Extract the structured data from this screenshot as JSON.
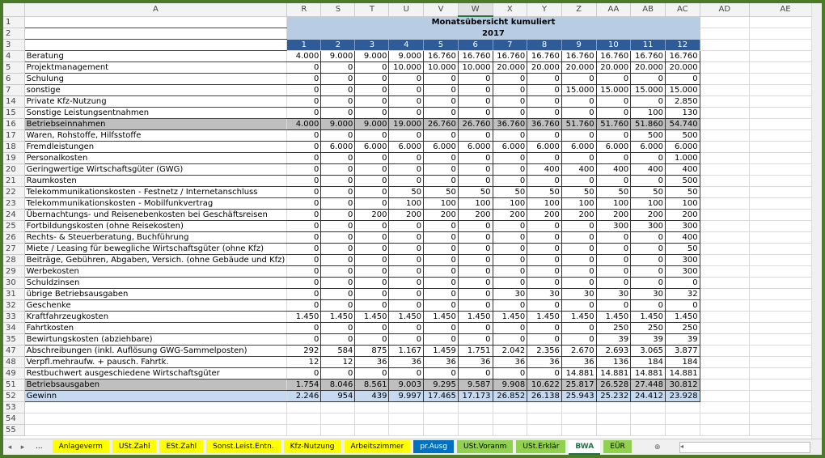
{
  "columns": [
    "A",
    "R",
    "S",
    "T",
    "U",
    "V",
    "W",
    "X",
    "Y",
    "Z",
    "AA",
    "AB",
    "AC",
    "AD",
    "AE"
  ],
  "selected_column": "W",
  "title": "Monatsübersicht kumuliert",
  "year": "2017",
  "months": [
    "1",
    "2",
    "3",
    "4",
    "5",
    "6",
    "7",
    "8",
    "9",
    "10",
    "11",
    "12"
  ],
  "rows": [
    {
      "n": "4",
      "label": "Beratung",
      "v": [
        "4.000",
        "9.000",
        "9.000",
        "9.000",
        "16.760",
        "16.760",
        "16.760",
        "16.760",
        "16.760",
        "16.760",
        "16.760",
        "16.760"
      ]
    },
    {
      "n": "5",
      "label": "Projektmanagement",
      "v": [
        "0",
        "0",
        "0",
        "10.000",
        "10.000",
        "10.000",
        "20.000",
        "20.000",
        "20.000",
        "20.000",
        "20.000",
        "20.000"
      ]
    },
    {
      "n": "6",
      "label": "Schulung",
      "v": [
        "0",
        "0",
        "0",
        "0",
        "0",
        "0",
        "0",
        "0",
        "0",
        "0",
        "0",
        "0"
      ]
    },
    {
      "n": "7",
      "label": "sonstige",
      "v": [
        "0",
        "0",
        "0",
        "0",
        "0",
        "0",
        "0",
        "0",
        "15.000",
        "15.000",
        "15.000",
        "15.000"
      ]
    },
    {
      "n": "14",
      "label": "Private Kfz-Nutzung",
      "v": [
        "0",
        "0",
        "0",
        "0",
        "0",
        "0",
        "0",
        "0",
        "0",
        "0",
        "0",
        "2.850"
      ]
    },
    {
      "n": "15",
      "label": "Sonstige Leistungsentnahmen",
      "v": [
        "0",
        "0",
        "0",
        "0",
        "0",
        "0",
        "0",
        "0",
        "0",
        "0",
        "100",
        "130"
      ]
    },
    {
      "n": "16",
      "label": "Betriebseinnahmen",
      "type": "sum",
      "v": [
        "4.000",
        "9.000",
        "9.000",
        "19.000",
        "26.760",
        "26.760",
        "36.760",
        "36.760",
        "51.760",
        "51.760",
        "51.860",
        "54.740"
      ]
    },
    {
      "n": "17",
      "label": "Waren, Rohstoffe, Hilfsstoffe",
      "v": [
        "0",
        "0",
        "0",
        "0",
        "0",
        "0",
        "0",
        "0",
        "0",
        "0",
        "500",
        "500"
      ]
    },
    {
      "n": "18",
      "label": "Fremdleistungen",
      "v": [
        "0",
        "6.000",
        "6.000",
        "6.000",
        "6.000",
        "6.000",
        "6.000",
        "6.000",
        "6.000",
        "6.000",
        "6.000",
        "6.000"
      ]
    },
    {
      "n": "19",
      "label": "Personalkosten",
      "v": [
        "0",
        "0",
        "0",
        "0",
        "0",
        "0",
        "0",
        "0",
        "0",
        "0",
        "0",
        "1.000"
      ]
    },
    {
      "n": "20",
      "label": "Geringwertige Wirtschaftsgüter (GWG)",
      "v": [
        "0",
        "0",
        "0",
        "0",
        "0",
        "0",
        "0",
        "400",
        "400",
        "400",
        "400",
        "400"
      ]
    },
    {
      "n": "21",
      "label": "Raumkosten",
      "v": [
        "0",
        "0",
        "0",
        "0",
        "0",
        "0",
        "0",
        "0",
        "0",
        "0",
        "0",
        "500"
      ]
    },
    {
      "n": "22",
      "label": "Telekommunikationskosten - Festnetz / Internetanschluss",
      "v": [
        "0",
        "0",
        "0",
        "50",
        "50",
        "50",
        "50",
        "50",
        "50",
        "50",
        "50",
        "50"
      ]
    },
    {
      "n": "23",
      "label": "Telekommunikationskosten - Mobilfunkvertrag",
      "v": [
        "0",
        "0",
        "0",
        "100",
        "100",
        "100",
        "100",
        "100",
        "100",
        "100",
        "100",
        "100"
      ]
    },
    {
      "n": "24",
      "label": "Übernachtungs- und Reisenebenkosten bei Geschäftsreisen",
      "v": [
        "0",
        "0",
        "200",
        "200",
        "200",
        "200",
        "200",
        "200",
        "200",
        "200",
        "200",
        "200"
      ]
    },
    {
      "n": "25",
      "label": "Fortbildungskosten (ohne Reisekosten)",
      "v": [
        "0",
        "0",
        "0",
        "0",
        "0",
        "0",
        "0",
        "0",
        "0",
        "300",
        "300",
        "300"
      ]
    },
    {
      "n": "26",
      "label": "Rechts- & Steuerberatung, Buchführung",
      "v": [
        "0",
        "0",
        "0",
        "0",
        "0",
        "0",
        "0",
        "0",
        "0",
        "0",
        "0",
        "400"
      ]
    },
    {
      "n": "27",
      "label": "Miete / Leasing für bewegliche Wirtschaftsgüter (ohne Kfz)",
      "v": [
        "0",
        "0",
        "0",
        "0",
        "0",
        "0",
        "0",
        "0",
        "0",
        "0",
        "0",
        "50"
      ]
    },
    {
      "n": "28",
      "label": "Beiträge, Gebühren, Abgaben, Versich. (ohne Gebäude und Kfz)",
      "v": [
        "0",
        "0",
        "0",
        "0",
        "0",
        "0",
        "0",
        "0",
        "0",
        "0",
        "0",
        "300"
      ]
    },
    {
      "n": "29",
      "label": "Werbekosten",
      "v": [
        "0",
        "0",
        "0",
        "0",
        "0",
        "0",
        "0",
        "0",
        "0",
        "0",
        "0",
        "300"
      ]
    },
    {
      "n": "30",
      "label": "Schuldzinsen",
      "v": [
        "0",
        "0",
        "0",
        "0",
        "0",
        "0",
        "0",
        "0",
        "0",
        "0",
        "0",
        "0"
      ]
    },
    {
      "n": "31",
      "label": "übrige Betriebsausgaben",
      "v": [
        "0",
        "0",
        "0",
        "0",
        "0",
        "0",
        "30",
        "30",
        "30",
        "30",
        "30",
        "32"
      ]
    },
    {
      "n": "32",
      "label": "Geschenke",
      "v": [
        "0",
        "0",
        "0",
        "0",
        "0",
        "0",
        "0",
        "0",
        "0",
        "0",
        "0",
        "0"
      ]
    },
    {
      "n": "33",
      "label": "Kraftfahrzeugkosten",
      "v": [
        "1.450",
        "1.450",
        "1.450",
        "1.450",
        "1.450",
        "1.450",
        "1.450",
        "1.450",
        "1.450",
        "1.450",
        "1.450",
        "1.450"
      ]
    },
    {
      "n": "34",
      "label": "Fahrtkosten",
      "v": [
        "0",
        "0",
        "0",
        "0",
        "0",
        "0",
        "0",
        "0",
        "0",
        "250",
        "250",
        "250"
      ]
    },
    {
      "n": "35",
      "label": "Bewirtungskosten (abziehbare)",
      "v": [
        "0",
        "0",
        "0",
        "0",
        "0",
        "0",
        "0",
        "0",
        "0",
        "39",
        "39",
        "39"
      ]
    },
    {
      "n": "47",
      "label": "Abschreibungen (inkl. Auflösung GWG-Sammelposten)",
      "v": [
        "292",
        "584",
        "875",
        "1.167",
        "1.459",
        "1.751",
        "2.042",
        "2.356",
        "2.670",
        "2.693",
        "3.065",
        "3.877"
      ]
    },
    {
      "n": "48",
      "label": "Verpfl.mehraufw. + pausch. Fahrtk.",
      "v": [
        "12",
        "12",
        "36",
        "36",
        "36",
        "36",
        "36",
        "36",
        "36",
        "136",
        "184",
        "184"
      ]
    },
    {
      "n": "49",
      "label": "Restbuchwert ausgeschiedene Wirtschaftsgüter",
      "v": [
        "0",
        "0",
        "0",
        "0",
        "0",
        "0",
        "0",
        "0",
        "14.881",
        "14.881",
        "14.881",
        "14.881"
      ]
    },
    {
      "n": "51",
      "label": "Betriebsausgaben",
      "type": "sum",
      "v": [
        "1.754",
        "8.046",
        "8.561",
        "9.003",
        "9.295",
        "9.587",
        "9.908",
        "10.622",
        "25.817",
        "26.528",
        "27.448",
        "30.812"
      ]
    },
    {
      "n": "52",
      "label": "Gewinn",
      "type": "gew",
      "v": [
        "2.246",
        "954",
        "439",
        "9.997",
        "17.465",
        "17.173",
        "26.852",
        "26.138",
        "25.943",
        "25.232",
        "24.412",
        "23.928"
      ]
    }
  ],
  "empty_rows": [
    "53",
    "54",
    "55"
  ],
  "header_rows": [
    "1",
    "2",
    "3"
  ],
  "tabs": [
    {
      "label": "...",
      "color": "#f0f0f0"
    },
    {
      "label": "Anlageverm",
      "color": "#ffff00"
    },
    {
      "label": "USt.Zahl",
      "color": "#ffff00"
    },
    {
      "label": "ESt.Zahl",
      "color": "#ffff00"
    },
    {
      "label": "Sonst.Leist.Entn.",
      "color": "#ffff00"
    },
    {
      "label": "Kfz-Nutzung",
      "color": "#ffff00"
    },
    {
      "label": "Arbeitszimmer",
      "color": "#ffff00"
    },
    {
      "label": "pr.Ausg",
      "color": "#0070c0",
      "text": "#ffffff"
    },
    {
      "label": "USt.Voranm",
      "color": "#92d050"
    },
    {
      "label": "USt.Erklär",
      "color": "#92d050"
    },
    {
      "label": "BWA",
      "color": "#ffffff",
      "active": true
    },
    {
      "label": "EÜR",
      "color": "#92d050"
    }
  ],
  "add_sheet_icon": "plus-circle-icon"
}
